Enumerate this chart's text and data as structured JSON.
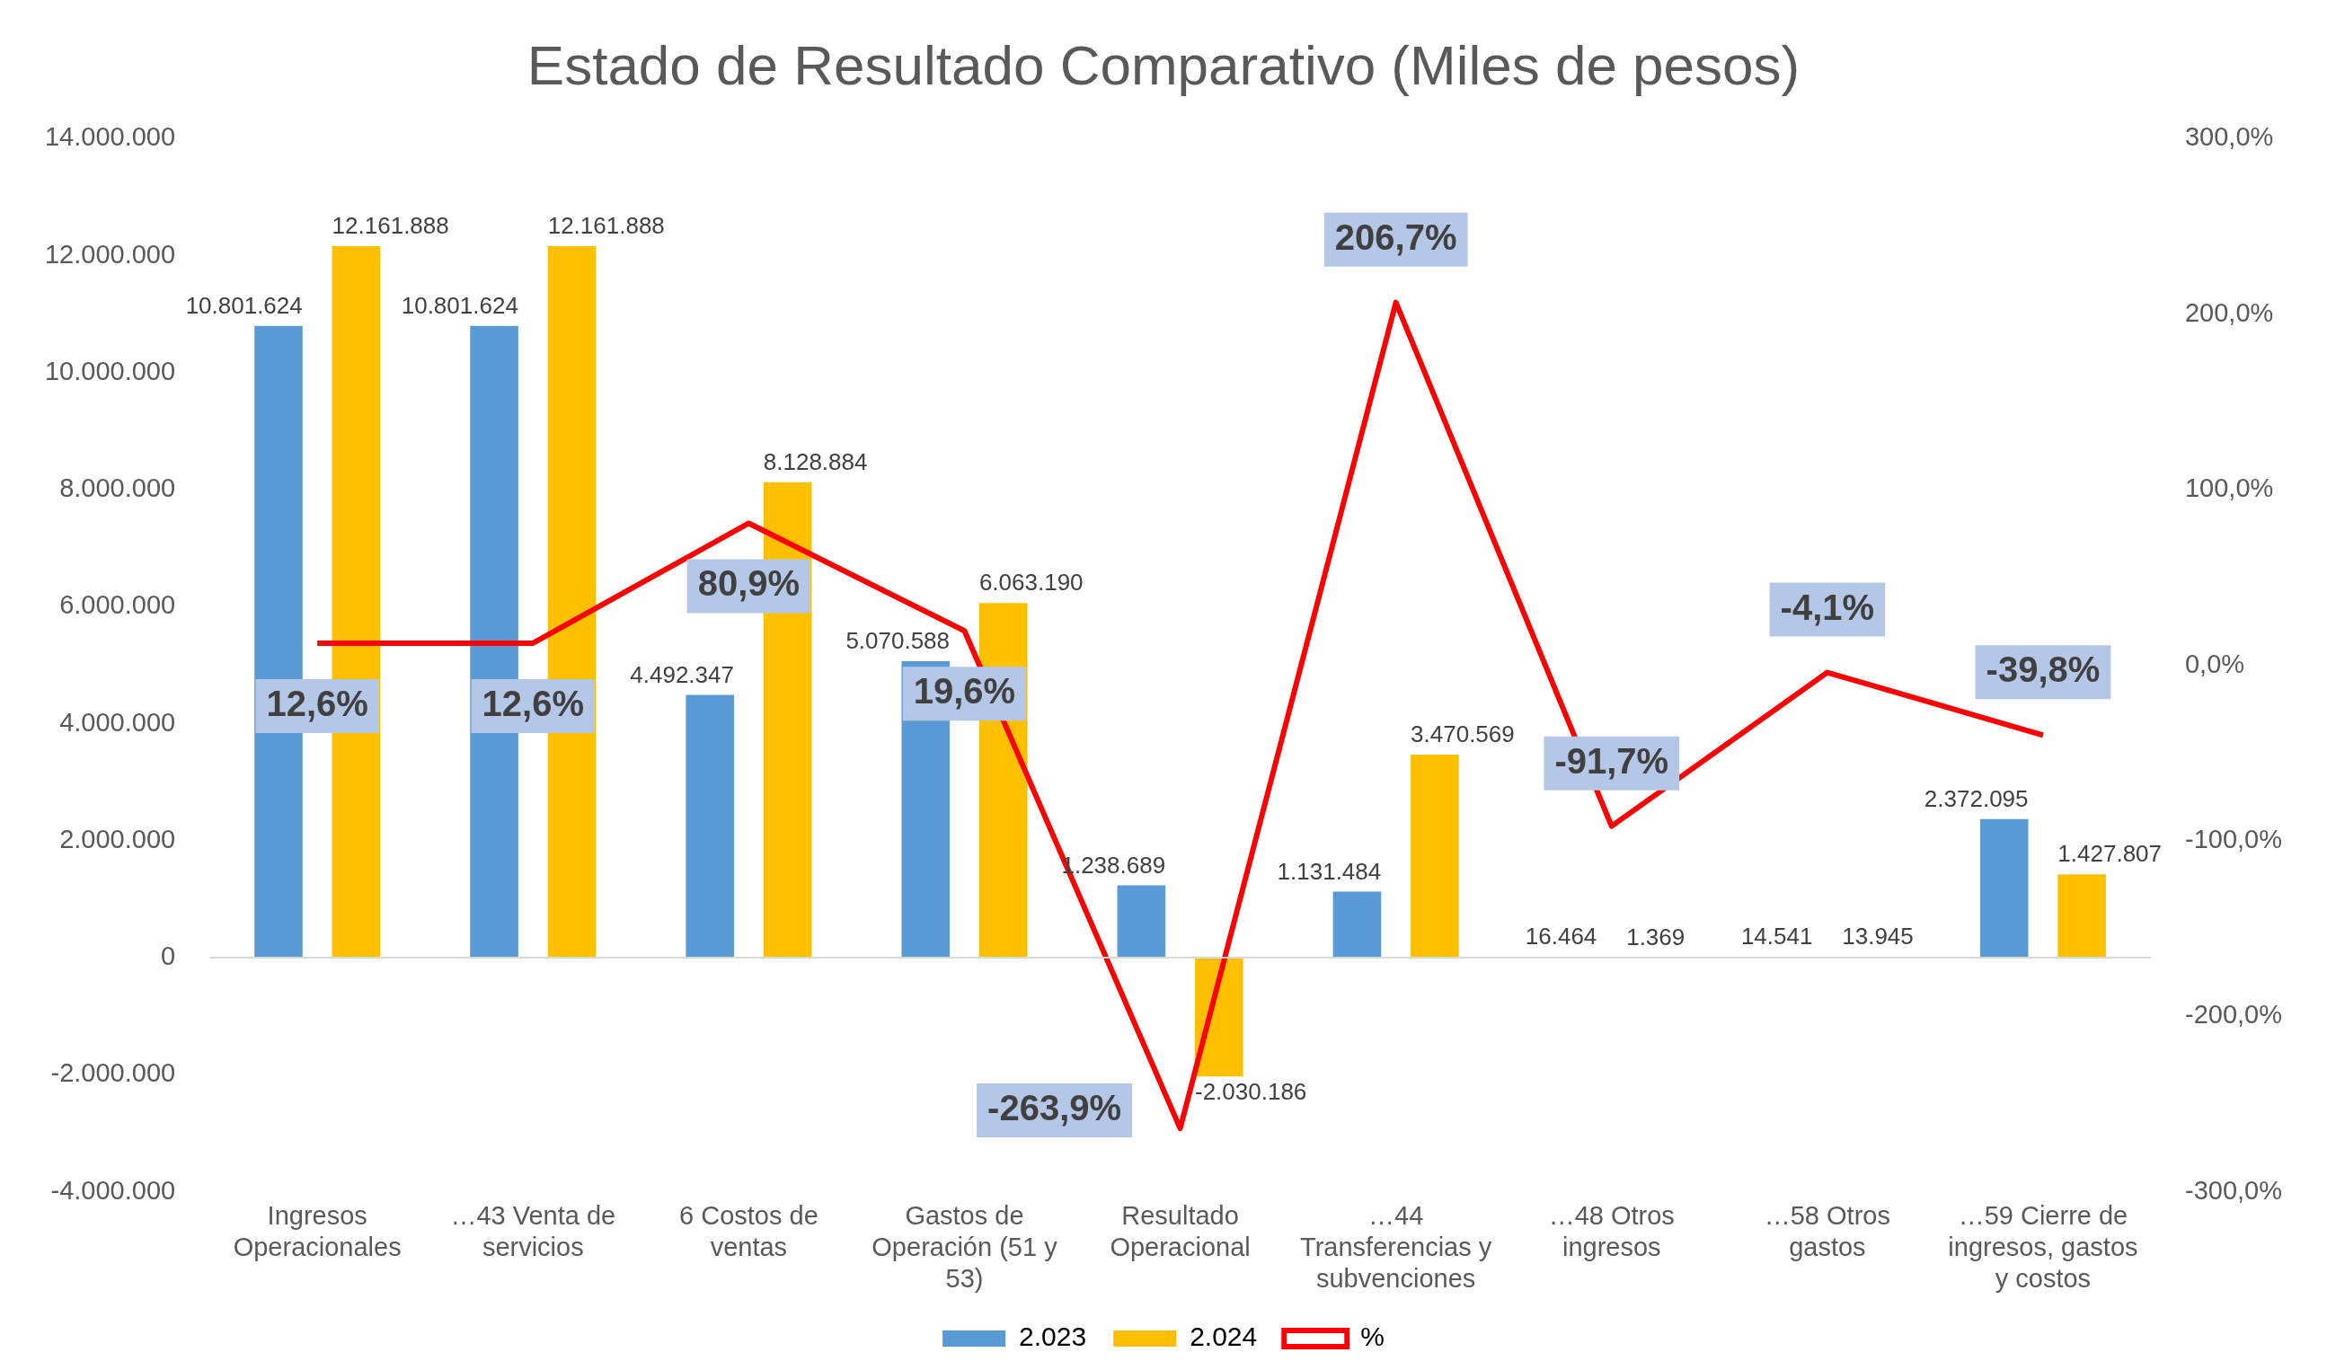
{
  "chart_data": {
    "type": "bar",
    "title": "Estado de Resultado Comparativo (Miles de pesos)",
    "categories": [
      "Ingresos Operacionales",
      "…43 Venta de servicios",
      "6 Costos de ventas",
      "Gastos de Operación (51 y 53)",
      "Resultado Operacional",
      "…44 Transferencias y subvenciones",
      "…48 Otros ingresos",
      "…58 Otros gastos",
      "…59 Cierre de ingresos, gastos y costos"
    ],
    "series": [
      {
        "name": "2.023",
        "color": "#5b9bd5",
        "values": [
          10801624,
          10801624,
          4492347,
          5070588,
          1238689,
          1131484,
          16464,
          14541,
          2372095
        ],
        "value_labels": [
          "10.801.624",
          "10.801.624",
          "4.492.347",
          "5.070.588",
          "1.238.689",
          "1.131.484",
          "16.464",
          "14.541",
          "2.372.095"
        ]
      },
      {
        "name": "2.024",
        "color": "#ffc000",
        "values": [
          12161888,
          12161888,
          8128884,
          6063190,
          -2030186,
          3470569,
          1369,
          13945,
          1427807
        ],
        "value_labels": [
          "12.161.888",
          "12.161.888",
          "8.128.884",
          "6.063.190",
          "-2.030.186",
          "3.470.569",
          "1.369",
          "13.945",
          "1.427.807"
        ]
      },
      {
        "name": "%",
        "type": "line",
        "axis": "y2",
        "color": "#ff0000",
        "values": [
          12.6,
          12.6,
          80.9,
          19.6,
          -263.9,
          206.7,
          -91.7,
          -4.1,
          -39.8
        ],
        "value_labels": [
          "12,6%",
          "12,6%",
          "80,9%",
          "19,6%",
          "-263,9%",
          "206,7%",
          "-91,7%",
          "-4,1%",
          "-39,8%"
        ]
      }
    ],
    "ylim": [
      -4000000,
      14000000
    ],
    "yticks": [
      {
        "value": -4000000,
        "label": "-4.000.000"
      },
      {
        "value": -2000000,
        "label": "-2.000.000"
      },
      0,
      {
        "value": 2000000,
        "label": "2.000.000"
      },
      {
        "value": 4000000,
        "label": "4.000.000"
      },
      {
        "value": 6000000,
        "label": "6.000.000"
      },
      {
        "value": 8000000,
        "label": "8.000.000"
      },
      {
        "value": 10000000,
        "label": "10.000.000"
      },
      {
        "value": 12000000,
        "label": "12.000.000"
      },
      {
        "value": 14000000,
        "label": "14.000.000"
      }
    ],
    "y2lim": [
      -300,
      300
    ],
    "y2ticks": [
      {
        "value": -300,
        "label": "-300,0%"
      },
      {
        "value": -200,
        "label": "-200,0%"
      },
      {
        "value": -100,
        "label": "-100,0%"
      },
      {
        "value": 0,
        "label": "0,0%"
      },
      {
        "value": 100,
        "label": "100,0%"
      },
      {
        "value": 200,
        "label": "200,0%"
      },
      {
        "value": 300,
        "label": "300,0%"
      }
    ],
    "ref_lines": [
      {
        "axis": "y",
        "value": 0,
        "color": "#d9d9d9"
      }
    ],
    "grid": false,
    "legend": "bottom",
    "marker": "none",
    "line_style": "solid"
  }
}
